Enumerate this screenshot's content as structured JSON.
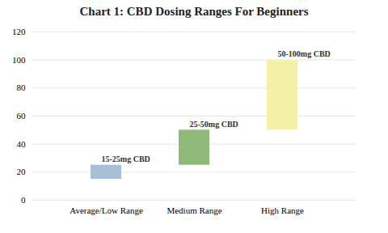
{
  "chart_data": {
    "type": "bar",
    "title": "Chart 1: CBD Dosing Ranges For Beginners",
    "categories": [
      "Average/Low Range",
      "Medium Range",
      "High Range"
    ],
    "bottoms": [
      15,
      25,
      50
    ],
    "values": [
      10,
      25,
      50
    ],
    "colors": [
      "#a8c0d6",
      "#8fba7a",
      "#f5f0a8"
    ],
    "annotations": [
      "15-25mg CBD",
      "25-50mg CBD",
      "50-100mg CBD"
    ],
    "ylim": [
      0,
      120
    ],
    "yticks": [
      0,
      20,
      40,
      60,
      80,
      100,
      120
    ],
    "grid": true
  }
}
